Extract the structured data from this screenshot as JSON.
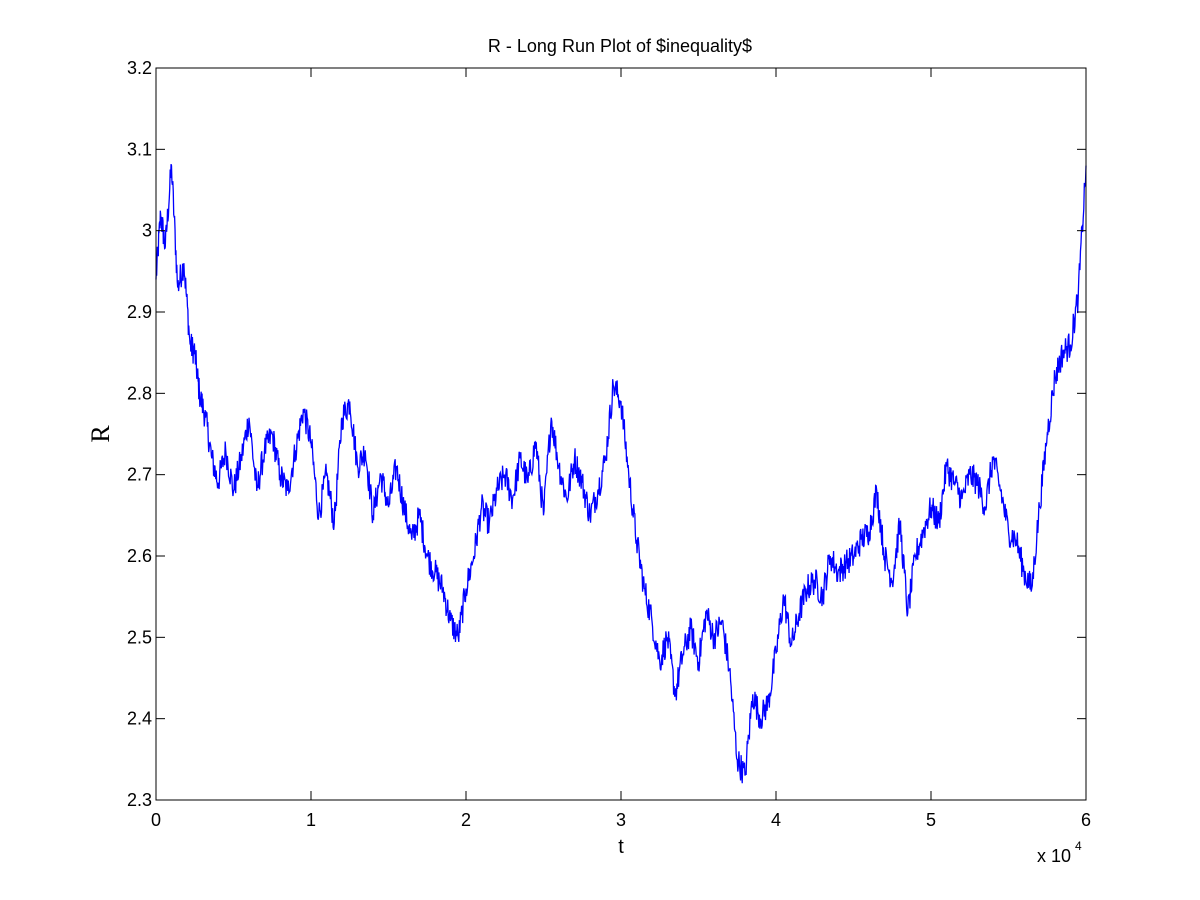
{
  "chart_data": {
    "type": "line",
    "title": "R - Long Run Plot of $inequality$",
    "xlabel": "t",
    "ylabel": "R",
    "x_multiplier": {
      "base": "x 10",
      "exponent": "4"
    },
    "xlim": [
      0,
      6
    ],
    "ylim": [
      2.3,
      3.2
    ],
    "x_ticks": [
      0,
      1,
      2,
      3,
      4,
      5,
      6
    ],
    "x_tick_labels": [
      "0",
      "1",
      "2",
      "3",
      "4",
      "5",
      "6"
    ],
    "y_ticks": [
      2.3,
      2.4,
      2.5,
      2.6,
      2.7,
      2.8,
      2.9,
      3.0,
      3.1,
      3.2
    ],
    "y_tick_labels": [
      "2.3",
      "2.4",
      "2.5",
      "2.6",
      "2.7",
      "2.8",
      "2.9",
      "3",
      "3.1",
      "3.2"
    ],
    "grid": false,
    "line_color": "#0000ff",
    "series": [
      {
        "x": [
          0.0,
          0.03,
          0.06,
          0.1,
          0.14,
          0.18,
          0.22,
          0.25,
          0.28,
          0.32,
          0.36,
          0.4,
          0.45,
          0.5,
          0.55,
          0.6,
          0.65,
          0.7,
          0.75,
          0.8,
          0.85,
          0.9,
          0.95,
          1.0,
          1.05,
          1.1,
          1.15,
          1.2,
          1.25,
          1.3,
          1.35,
          1.4,
          1.45,
          1.5,
          1.55,
          1.6,
          1.65,
          1.7,
          1.75,
          1.8,
          1.85,
          1.9,
          1.95,
          2.0,
          2.05,
          2.1,
          2.15,
          2.2,
          2.25,
          2.3,
          2.35,
          2.4,
          2.45,
          2.5,
          2.55,
          2.6,
          2.65,
          2.7,
          2.75,
          2.8,
          2.85,
          2.9,
          2.95,
          3.0,
          3.05,
          3.1,
          3.15,
          3.2,
          3.25,
          3.3,
          3.35,
          3.4,
          3.45,
          3.5,
          3.55,
          3.6,
          3.65,
          3.7,
          3.75,
          3.8,
          3.85,
          3.9,
          3.95,
          4.0,
          4.05,
          4.1,
          4.15,
          4.2,
          4.25,
          4.3,
          4.35,
          4.4,
          4.45,
          4.5,
          4.55,
          4.6,
          4.65,
          4.7,
          4.75,
          4.8,
          4.85,
          4.9,
          4.95,
          5.0,
          5.05,
          5.1,
          5.15,
          5.2,
          5.25,
          5.3,
          5.35,
          5.4,
          5.45,
          5.5,
          5.55,
          5.6,
          5.65,
          5.7,
          5.75,
          5.8,
          5.85,
          5.9,
          5.95,
          6.0
        ],
        "y": [
          2.94,
          3.02,
          2.98,
          3.08,
          2.93,
          2.96,
          2.86,
          2.85,
          2.8,
          2.77,
          2.72,
          2.69,
          2.73,
          2.68,
          2.72,
          2.77,
          2.68,
          2.73,
          2.75,
          2.7,
          2.68,
          2.73,
          2.78,
          2.74,
          2.65,
          2.7,
          2.64,
          2.77,
          2.79,
          2.71,
          2.73,
          2.65,
          2.7,
          2.66,
          2.71,
          2.66,
          2.62,
          2.65,
          2.6,
          2.58,
          2.56,
          2.52,
          2.5,
          2.56,
          2.6,
          2.66,
          2.64,
          2.68,
          2.7,
          2.67,
          2.72,
          2.69,
          2.74,
          2.65,
          2.77,
          2.71,
          2.67,
          2.72,
          2.69,
          2.65,
          2.68,
          2.72,
          2.81,
          2.79,
          2.7,
          2.62,
          2.56,
          2.52,
          2.47,
          2.5,
          2.43,
          2.48,
          2.51,
          2.47,
          2.53,
          2.5,
          2.52,
          2.46,
          2.35,
          2.33,
          2.43,
          2.4,
          2.42,
          2.48,
          2.55,
          2.49,
          2.53,
          2.56,
          2.57,
          2.55,
          2.6,
          2.58,
          2.59,
          2.6,
          2.62,
          2.63,
          2.68,
          2.6,
          2.57,
          2.64,
          2.53,
          2.6,
          2.63,
          2.66,
          2.64,
          2.71,
          2.69,
          2.67,
          2.7,
          2.69,
          2.66,
          2.72,
          2.68,
          2.63,
          2.62,
          2.58,
          2.56,
          2.66,
          2.75,
          2.82,
          2.85,
          2.86,
          2.92,
          3.08
        ]
      }
    ]
  }
}
